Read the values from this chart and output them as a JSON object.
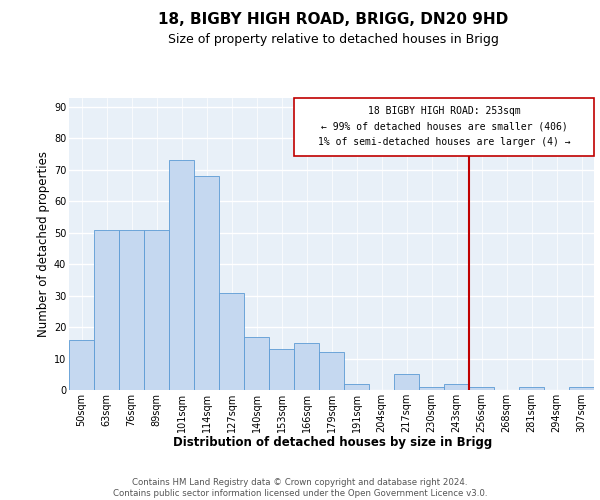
{
  "title": "18, BIGBY HIGH ROAD, BRIGG, DN20 9HD",
  "subtitle": "Size of property relative to detached houses in Brigg",
  "xlabel": "Distribution of detached houses by size in Brigg",
  "ylabel": "Number of detached properties",
  "footer": "Contains HM Land Registry data © Crown copyright and database right 2024.\nContains public sector information licensed under the Open Government Licence v3.0.",
  "categories": [
    "50sqm",
    "63sqm",
    "76sqm",
    "89sqm",
    "101sqm",
    "114sqm",
    "127sqm",
    "140sqm",
    "153sqm",
    "166sqm",
    "179sqm",
    "191sqm",
    "204sqm",
    "217sqm",
    "230sqm",
    "243sqm",
    "256sqm",
    "268sqm",
    "281sqm",
    "294sqm",
    "307sqm"
  ],
  "values": [
    16,
    51,
    51,
    51,
    73,
    68,
    31,
    17,
    13,
    15,
    12,
    2,
    0,
    5,
    1,
    2,
    1,
    0,
    1,
    0,
    1
  ],
  "bar_color": "#c5d8f0",
  "bar_edge_color": "#5b9bd5",
  "vline_x": 15.5,
  "vline_color": "#c00000",
  "annotation_box_text": "18 BIGBY HIGH ROAD: 253sqm\n← 99% of detached houses are smaller (406)\n1% of semi-detached houses are larger (4) →",
  "box_edge_color": "#c00000",
  "ylim": [
    0,
    93
  ],
  "yticks": [
    0,
    10,
    20,
    30,
    40,
    50,
    60,
    70,
    80,
    90
  ],
  "plot_bg_color": "#e8f0f8",
  "title_fontsize": 11,
  "subtitle_fontsize": 9,
  "axis_label_fontsize": 8.5,
  "tick_fontsize": 7
}
